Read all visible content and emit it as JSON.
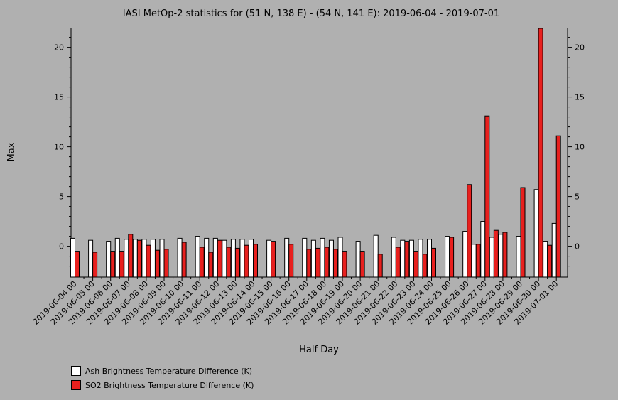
{
  "chart_data": {
    "type": "bar",
    "title": "IASI MetOp-2 statistics for (51 N, 138 E) - (54 N, 141 E): 2019-06-04 - 2019-07-01",
    "xlabel": "Half Day",
    "ylabel": "Max",
    "ylim": [
      -3.1,
      21.9
    ],
    "yticks": [
      0,
      5,
      10,
      15,
      20
    ],
    "categories": [
      "2019-06-04 00",
      "2019-06-04 12",
      "2019-06-05 00",
      "2019-06-05 12",
      "2019-06-06 00",
      "2019-06-06 12",
      "2019-06-07 00",
      "2019-06-07 12",
      "2019-06-08 00",
      "2019-06-08 12",
      "2019-06-09 00",
      "2019-06-09 12",
      "2019-06-10 00",
      "2019-06-10 12",
      "2019-06-11 00",
      "2019-06-11 12",
      "2019-06-12 00",
      "2019-06-12 12",
      "2019-06-13 00",
      "2019-06-13 12",
      "2019-06-14 00",
      "2019-06-14 12",
      "2019-06-15 00",
      "2019-06-15 12",
      "2019-06-16 00",
      "2019-06-16 12",
      "2019-06-17 00",
      "2019-06-17 12",
      "2019-06-18 00",
      "2019-06-18 12",
      "2019-06-19 00",
      "2019-06-19 12",
      "2019-06-20 00",
      "2019-06-20 12",
      "2019-06-21 00",
      "2019-06-21 12",
      "2019-06-22 00",
      "2019-06-22 12",
      "2019-06-23 00",
      "2019-06-23 12",
      "2019-06-24 00",
      "2019-06-24 12",
      "2019-06-25 00",
      "2019-06-25 12",
      "2019-06-26 00",
      "2019-06-26 12",
      "2019-06-27 00",
      "2019-06-27 12",
      "2019-06-28 00",
      "2019-06-28 12",
      "2019-06-29 00",
      "2019-06-29 12",
      "2019-06-30 00",
      "2019-06-30 12",
      "2019-07-01 00"
    ],
    "tick_labels": [
      "2019-06-04 00",
      "2019-06-05 00",
      "2019-06-06 00",
      "2019-06-07 00",
      "2019-06-08 00",
      "2019-06-09 00",
      "2019-06-10 00",
      "2019-06-11 00",
      "2019-06-12 00",
      "2019-06-13 00",
      "2019-06-14 00",
      "2019-06-15 00",
      "2019-06-16 00",
      "2019-06-17 00",
      "2019-06-18 00",
      "2019-06-19 00",
      "2019-06-20 00",
      "2019-06-21 00",
      "2019-06-22 00",
      "2019-06-23 00",
      "2019-06-24 00",
      "2019-06-25 00",
      "2019-06-26 00",
      "2019-06-27 00",
      "2019-06-28 00",
      "2019-06-29 00",
      "2019-06-30 00",
      "2019-07-01 00"
    ],
    "series": [
      {
        "name": "Ash Brightness Temperature Difference (K)",
        "color": "#ffffff",
        "values": [
          0.8,
          null,
          0.6,
          null,
          0.5,
          0.8,
          0.7,
          0.7,
          0.7,
          0.7,
          0.7,
          null,
          0.8,
          null,
          1.0,
          0.8,
          0.8,
          0.6,
          0.7,
          0.7,
          0.7,
          null,
          0.6,
          null,
          0.8,
          null,
          0.8,
          0.6,
          0.8,
          0.6,
          0.9,
          null,
          0.5,
          null,
          1.1,
          null,
          0.9,
          0.6,
          0.6,
          0.7,
          0.7,
          null,
          1.0,
          null,
          1.5,
          0.2,
          2.5,
          0.9,
          1.2,
          null,
          1.0,
          null,
          5.7,
          0.5,
          2.3
        ]
      },
      {
        "name": "SO2 Brightness Temperature Difference (K)",
        "color": "#e8201e",
        "values": [
          -0.5,
          null,
          -0.6,
          null,
          -0.5,
          -0.5,
          1.2,
          0.6,
          0.1,
          -0.4,
          -0.3,
          null,
          0.4,
          null,
          -0.1,
          -0.6,
          0.6,
          -0.1,
          -0.2,
          0.1,
          0.2,
          null,
          0.5,
          null,
          0.2,
          null,
          -0.3,
          -0.2,
          -0.1,
          -0.3,
          -0.5,
          null,
          -0.5,
          null,
          -0.8,
          null,
          -0.1,
          0.5,
          -0.5,
          -0.8,
          -0.2,
          null,
          0.9,
          null,
          6.2,
          0.2,
          13.1,
          1.6,
          1.4,
          null,
          5.9,
          null,
          21.9,
          0.1,
          11.1
        ]
      }
    ],
    "legend_position": "bottom-left",
    "grid": false
  }
}
